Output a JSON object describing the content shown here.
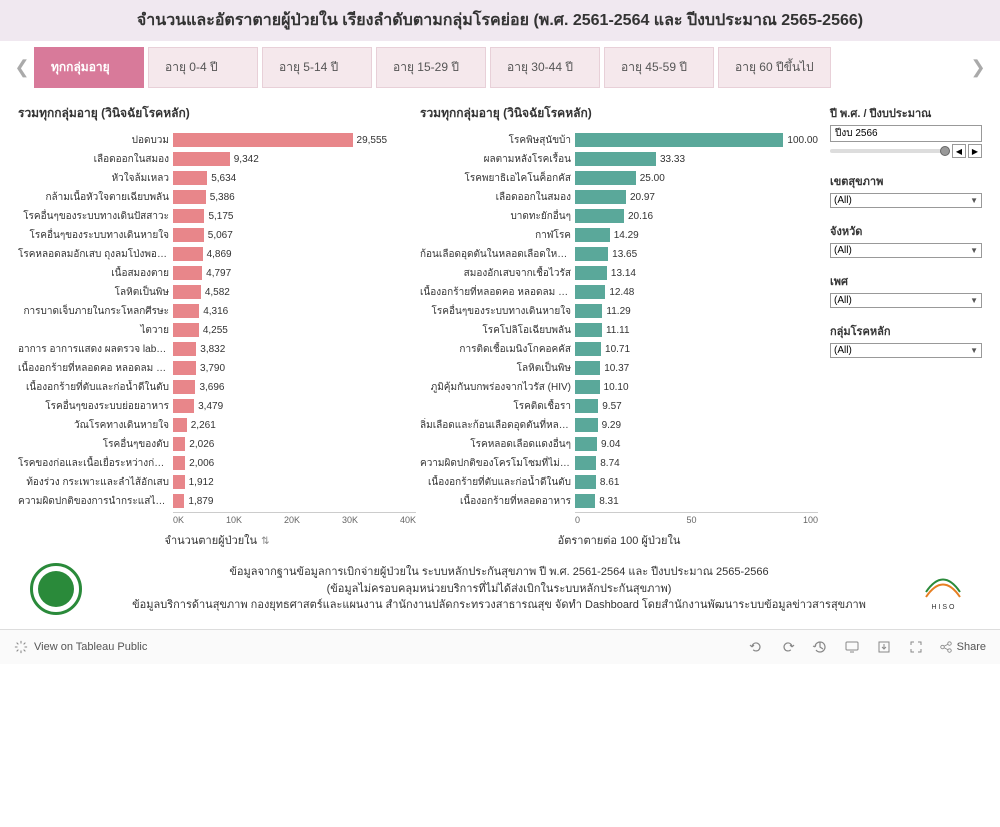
{
  "header": {
    "title": "จำนวนและอัตราตายผู้ป่วยใน เรียงลำดับตามกลุ่มโรคย่อย (พ.ศ. 2561-2564 และ ปีงบประมาณ 2565-2566)"
  },
  "tabs": {
    "items": [
      {
        "label": "ทุกกลุ่มอายุ",
        "active": true
      },
      {
        "label": "อายุ 0-4 ปี",
        "active": false
      },
      {
        "label": "อายุ 5-14 ปี",
        "active": false
      },
      {
        "label": "อายุ 15-29 ปี",
        "active": false
      },
      {
        "label": "อายุ 30-44 ปี",
        "active": false
      },
      {
        "label": "อายุ 45-59 ปี",
        "active": false
      },
      {
        "label": "อายุ 60 ปีขึ้นไป",
        "active": false
      }
    ]
  },
  "chart1": {
    "title": "รวมทุกกลุ่มอายุ (วินิจฉัยโรคหลัก)",
    "type": "bar",
    "bar_color": "#e8868a",
    "max": 40000,
    "ticks": [
      "0K",
      "10K",
      "20K",
      "30K",
      "40K"
    ],
    "axis_label": "จำนวนตายผู้ป่วยใน",
    "data": [
      {
        "label": "ปอดบวม",
        "value": 29555,
        "display": "29,555"
      },
      {
        "label": "เลือดออกในสมอง",
        "value": 9342,
        "display": "9,342"
      },
      {
        "label": "หัวใจล้มเหลว",
        "value": 5634,
        "display": "5,634"
      },
      {
        "label": "กล้ามเนื้อหัวใจตายเฉียบพลัน",
        "value": 5386,
        "display": "5,386"
      },
      {
        "label": "โรคอื่นๆของระบบทางเดินปัสสาวะ",
        "value": 5175,
        "display": "5,175"
      },
      {
        "label": "โรคอื่นๆของระบบทางเดินหายใจ",
        "value": 5067,
        "display": "5,067"
      },
      {
        "label": "โรคหลอดลมอักเสบ ถุงลมโป่งพอง ป..",
        "value": 4869,
        "display": "4,869"
      },
      {
        "label": "เนื้อสมองตาย",
        "value": 4797,
        "display": "4,797"
      },
      {
        "label": "โลหิตเป็นพิษ",
        "value": 4582,
        "display": "4,582"
      },
      {
        "label": "การบาดเจ็บภายในกระโหลกศีรษะ",
        "value": 4316,
        "display": "4,316"
      },
      {
        "label": "ไตวาย",
        "value": 4255,
        "display": "4,255"
      },
      {
        "label": "อาการ อาการแสดง ผลตรวจ lab อื่นๆ",
        "value": 3832,
        "display": "3,832"
      },
      {
        "label": "เนื้องอกร้ายที่หลอดคอ หลอดลม และ..",
        "value": 3790,
        "display": "3,790"
      },
      {
        "label": "เนื้องอกร้ายที่ตับและก่อน้ำดีในตับ",
        "value": 3696,
        "display": "3,696"
      },
      {
        "label": "โรคอื่นๆของระบบย่อยอาหาร",
        "value": 3479,
        "display": "3,479"
      },
      {
        "label": "วัณโรคทางเดินหายใจ",
        "value": 2261,
        "display": "2,261"
      },
      {
        "label": "โรคอื่นๆของตับ",
        "value": 2026,
        "display": "2,026"
      },
      {
        "label": "โรคของก่อและเนื้อเยื่อระหว่างก่อในไต",
        "value": 2006,
        "display": "2,006"
      },
      {
        "label": "ท้องร่วง กระเพาะและลำไส้อักเสบ",
        "value": 1912,
        "display": "1,912"
      },
      {
        "label": "ความผิดปกติของการนำกระแสไฟฟ้าห้..",
        "value": 1879,
        "display": "1,879"
      }
    ]
  },
  "chart2": {
    "title": "รวมทุกกลุ่มอายุ (วินิจฉัยโรคหลัก)",
    "type": "bar",
    "bar_color": "#5aa89a",
    "max": 100,
    "ticks": [
      "0",
      "50",
      "100"
    ],
    "axis_label": "อัตราตายต่อ 100 ผู้ป่วยใน",
    "data": [
      {
        "label": "โรคพิษสุนัขบ้า",
        "value": 100.0,
        "display": "100.00"
      },
      {
        "label": "ผลตามหลังโรคเรื้อน",
        "value": 33.33,
        "display": "33.33"
      },
      {
        "label": "โรคพยาธิเอไคโนค็อกคัส",
        "value": 25.0,
        "display": "25.00"
      },
      {
        "label": "เลือดออกในสมอง",
        "value": 20.97,
        "display": "20.97"
      },
      {
        "label": "บาดทะยักอื่นๆ",
        "value": 20.16,
        "display": "20.16"
      },
      {
        "label": "กาฬโรค",
        "value": 14.29,
        "display": "14.29"
      },
      {
        "label": "ก้อนเลือดอุดตันในหลอดเลือดใหญ่ข..",
        "value": 13.65,
        "display": "13.65"
      },
      {
        "label": "สมองอักเสบจากเชื้อไวรัส",
        "value": 13.14,
        "display": "13.14"
      },
      {
        "label": "เนื้องอกร้ายที่หลอดคอ หลอดลม และ..",
        "value": 12.48,
        "display": "12.48"
      },
      {
        "label": "โรคอื่นๆของระบบทางเดินหายใจ",
        "value": 11.29,
        "display": "11.29"
      },
      {
        "label": "โรคโปลิโอเฉียบพลัน",
        "value": 11.11,
        "display": "11.11"
      },
      {
        "label": "การติดเชื้อเมนิงโกคอคคัส",
        "value": 10.71,
        "display": "10.71"
      },
      {
        "label": "โลหิตเป็นพิษ",
        "value": 10.37,
        "display": "10.37"
      },
      {
        "label": "ภูมิคุ้มกันบกพร่องจากไวรัส (HIV)",
        "value": 10.1,
        "display": "10.10"
      },
      {
        "label": "โรคติดเชื้อรา",
        "value": 9.57,
        "display": "9.57"
      },
      {
        "label": "ลิ่มเลือดและก้อนเลือดอุดตันที่หลอด..",
        "value": 9.29,
        "display": "9.29"
      },
      {
        "label": "โรคหลอดเลือดแดงอื่นๆ",
        "value": 9.04,
        "display": "9.04"
      },
      {
        "label": "ความผิดปกติของโครโมโซมที่ไม่ได้ระบุ..",
        "value": 8.74,
        "display": "8.74"
      },
      {
        "label": "เนื้องอกร้ายที่ตับและก่อน้ำดีในตับ",
        "value": 8.61,
        "display": "8.61"
      },
      {
        "label": "เนื้องอกร้ายที่หลอดอาหาร",
        "value": 8.31,
        "display": "8.31"
      }
    ]
  },
  "filters": {
    "year": {
      "label": "ปี พ.ศ. / ปีงบประมาณ",
      "value": "ปีงบ 2566"
    },
    "region": {
      "label": "เขตสุขภาพ",
      "value": "(All)"
    },
    "province": {
      "label": "จังหวัด",
      "value": "(All)"
    },
    "gender": {
      "label": "เพศ",
      "value": "(All)"
    },
    "disease_group": {
      "label": "กลุ่มโรคหลัก",
      "value": "(All)"
    }
  },
  "footer": {
    "line1": "ข้อมูลจากฐานข้อมูลการเบิกจ่ายผู้ป่วยใน ระบบหลักประกันสุขภาพ ปี พ.ศ. 2561-2564 และ ปีงบประมาณ 2565-2566",
    "line2": "(ข้อมูลไม่ครอบคลุมหน่วยบริการที่ไม่ได้ส่งเบิกในระบบหลักประกันสุขภาพ)",
    "line3": "ข้อมูลบริการด้านสุขภาพ กองยุทธศาสตร์และแผนงาน สำนักงานปลัดกระทรวงสาธารณสุข จัดทำ Dashboard โดยสำนักงานพัฒนาระบบข้อมูลข่าวสารสุขภาพ",
    "logo_right_text": "H I S O"
  },
  "bottombar": {
    "view_text": "View on Tableau Public",
    "share": "Share"
  }
}
